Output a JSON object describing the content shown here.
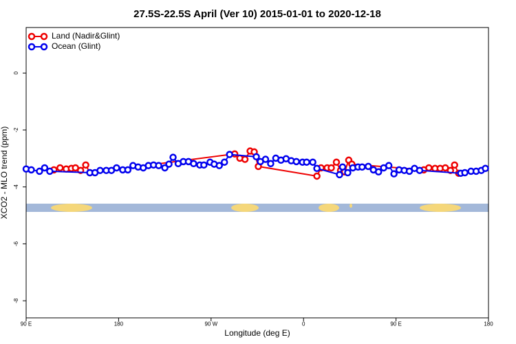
{
  "chart_data": {
    "type": "line",
    "title": "27.5S-22.5S April (Ver 10)   2015-01-01 to 2020-12-18",
    "x_label": "Longitude (deg E)",
    "y_label": "XCO2 - MLO trend (ppm)",
    "xlim": [
      90,
      540
    ],
    "ylim": [
      -8.6,
      1.6
    ],
    "xticks": [
      {
        "value": 90,
        "label": "90 E"
      },
      180,
      {
        "value": 270,
        "label": "90 W"
      },
      {
        "value": 360,
        "label": "0"
      },
      {
        "value": 450,
        "label": "90 E"
      },
      {
        "value": 540,
        "label": "180"
      }
    ],
    "yticks": [
      0,
      -2,
      -4,
      -6,
      -8
    ],
    "legend": "top-left",
    "series": [
      {
        "name": "Land (Nadir&Glint)",
        "color": "#ee0000",
        "x": [
          117,
          123,
          129,
          134,
          138,
          143,
          148,
          152,
          293,
          298,
          303,
          308,
          312,
          316,
          373,
          377,
          383,
          387,
          392,
          396,
          400,
          404,
          407,
          477,
          482,
          488,
          493,
          498,
          503,
          507,
          511
        ],
        "values": [
          -3.4,
          -3.33,
          -3.37,
          -3.35,
          -3.33,
          -3.42,
          -3.23,
          -3.5,
          -2.84,
          -2.99,
          -3.03,
          -2.74,
          -2.77,
          -3.28,
          -3.62,
          -3.33,
          -3.33,
          -3.33,
          -3.13,
          -3.42,
          -3.47,
          -3.06,
          -3.2,
          -3.4,
          -3.33,
          -3.35,
          -3.35,
          -3.33,
          -3.42,
          -3.23,
          -3.52
        ]
      },
      {
        "name": "Ocean (Glint)",
        "color": "#0000ee",
        "x": [
          90,
          95,
          103,
          108,
          113,
          152,
          157,
          162,
          168,
          173,
          178,
          184,
          189,
          194,
          199,
          204,
          209,
          214,
          219,
          225,
          229,
          233,
          238,
          243,
          248,
          253,
          259,
          263,
          269,
          273,
          278,
          283,
          288,
          314,
          318,
          323,
          328,
          333,
          338,
          343,
          348,
          353,
          359,
          363,
          369,
          373,
          395,
          398,
          403,
          408,
          413,
          417,
          423,
          428,
          433,
          438,
          443,
          448,
          453,
          458,
          463,
          468,
          473,
          513,
          517,
          523,
          528,
          533,
          537
        ],
        "values": [
          -3.37,
          -3.4,
          -3.45,
          -3.33,
          -3.45,
          -3.5,
          -3.5,
          -3.42,
          -3.42,
          -3.42,
          -3.33,
          -3.4,
          -3.4,
          -3.25,
          -3.3,
          -3.33,
          -3.25,
          -3.23,
          -3.25,
          -3.33,
          -3.2,
          -2.96,
          -3.18,
          -3.11,
          -3.11,
          -3.18,
          -3.23,
          -3.23,
          -3.13,
          -3.2,
          -3.25,
          -3.13,
          -2.86,
          -2.94,
          -3.11,
          -3.03,
          -3.18,
          -2.99,
          -3.06,
          -3.01,
          -3.08,
          -3.11,
          -3.13,
          -3.13,
          -3.13,
          -3.35,
          -3.57,
          -3.3,
          -3.5,
          -3.33,
          -3.3,
          -3.3,
          -3.28,
          -3.4,
          -3.47,
          -3.33,
          -3.25,
          -3.54,
          -3.4,
          -3.42,
          -3.45,
          -3.35,
          -3.42,
          -3.52,
          -3.5,
          -3.45,
          -3.45,
          -3.42,
          -3.35
        ]
      }
    ]
  }
}
